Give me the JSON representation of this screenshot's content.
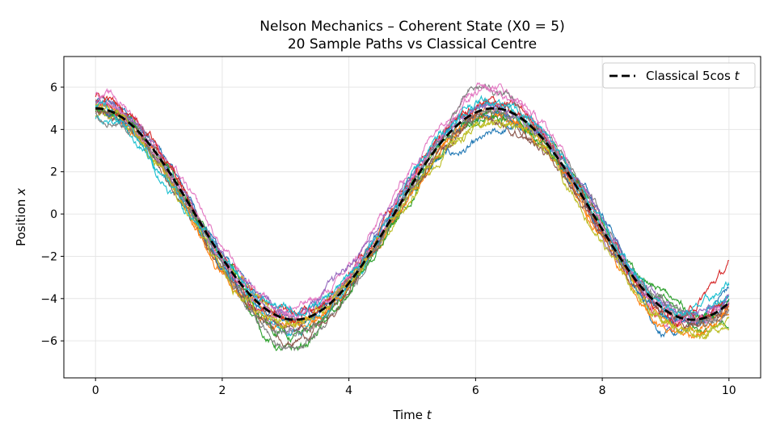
{
  "chart_data": {
    "type": "line",
    "title": "Nelson Mechanics – Coherent State (X0 = 5)",
    "subtitle": "20 Sample Paths vs Classical Centre",
    "xlabel": "Time t",
    "ylabel": "Position x",
    "xlim": [
      -0.5,
      10.5
    ],
    "ylim": [
      -7.75,
      7.45
    ],
    "xticks": [
      0,
      2,
      4,
      6,
      8,
      10
    ],
    "xtick_labels": [
      "0",
      "2",
      "4",
      "6",
      "8",
      "10"
    ],
    "yticks": [
      -6,
      -4,
      -2,
      0,
      2,
      4,
      6
    ],
    "ytick_labels": [
      "−6",
      "−4",
      "−2",
      "0",
      "2",
      "4",
      "6"
    ],
    "grid": true,
    "legend": {
      "position": "top-right",
      "entries": [
        "Classical 5cos t"
      ]
    },
    "classical": {
      "name": "Classical 5cos t",
      "formula": "5cos(t)",
      "color": "#000000",
      "style": "dashed"
    },
    "x": [
      0,
      1,
      2,
      3,
      4,
      5,
      6,
      7,
      8,
      9,
      10
    ],
    "series": [
      {
        "color": "#1f77b4",
        "values": [
          5.3,
          3.0,
          -1.8,
          -4.8,
          -3.0,
          1.3,
          3.2,
          3.5,
          0.2,
          -5.6,
          -3.5
        ]
      },
      {
        "color": "#ff7f0e",
        "values": [
          4.9,
          2.4,
          -2.6,
          -5.3,
          -3.3,
          1.6,
          4.6,
          3.6,
          -1.1,
          -4.9,
          -4.6
        ]
      },
      {
        "color": "#2ca02c",
        "values": [
          5.1,
          2.7,
          -2.2,
          -6.5,
          -3.6,
          0.8,
          4.2,
          3.9,
          -0.6,
          -4.2,
          -5.2
        ]
      },
      {
        "color": "#d62728",
        "values": [
          5.5,
          2.9,
          -1.9,
          -4.6,
          -3.1,
          1.8,
          5.0,
          4.1,
          -0.4,
          -4.8,
          -2.5
        ]
      },
      {
        "color": "#9467bd",
        "values": [
          5.0,
          2.6,
          -2.3,
          -5.2,
          -2.8,
          1.7,
          4.9,
          3.7,
          -1.0,
          -4.4,
          -3.9
        ]
      },
      {
        "color": "#8c564b",
        "values": [
          4.8,
          2.5,
          -2.6,
          -5.9,
          -3.5,
          1.2,
          4.5,
          3.3,
          -0.9,
          -4.7,
          -4.3
        ]
      },
      {
        "color": "#e377c2",
        "values": [
          5.7,
          3.2,
          -1.6,
          -4.3,
          -2.6,
          2.3,
          6.1,
          4.4,
          -0.2,
          -5.0,
          -4.0
        ]
      },
      {
        "color": "#7f7f7f",
        "values": [
          5.2,
          2.8,
          -2.4,
          -6.4,
          -3.8,
          1.0,
          5.8,
          3.9,
          -0.1,
          -4.3,
          -4.5
        ]
      },
      {
        "color": "#bcbd22",
        "values": [
          4.7,
          2.3,
          -2.0,
          -4.9,
          -3.1,
          0.9,
          4.0,
          3.4,
          -0.8,
          -5.2,
          -4.9
        ]
      },
      {
        "color": "#17becf",
        "values": [
          4.6,
          1.9,
          -2.1,
          -5.6,
          -3.4,
          1.5,
          5.2,
          3.8,
          -0.7,
          -4.6,
          -3.6
        ]
      },
      {
        "color": "#1f77b4",
        "values": [
          5.0,
          2.6,
          -2.3,
          -5.1,
          -3.2,
          1.4,
          4.7,
          3.6,
          -0.9,
          -4.9,
          -4.1
        ]
      },
      {
        "color": "#ff7f0e",
        "values": [
          5.1,
          2.5,
          -2.7,
          -4.9,
          -3.4,
          1.1,
          4.4,
          3.5,
          -1.2,
          -5.3,
          -4.7
        ]
      },
      {
        "color": "#2ca02c",
        "values": [
          4.9,
          2.8,
          -2.0,
          -5.7,
          -3.7,
          1.3,
          4.5,
          3.4,
          -0.5,
          -3.9,
          -4.4
        ]
      },
      {
        "color": "#d62728",
        "values": [
          5.4,
          3.0,
          -2.1,
          -5.0,
          -2.9,
          1.6,
          5.1,
          4.0,
          -0.6,
          -4.8,
          -4.2
        ]
      },
      {
        "color": "#9467bd",
        "values": [
          5.2,
          2.9,
          -1.9,
          -4.4,
          -2.5,
          1.9,
          4.9,
          3.9,
          -0.3,
          -4.5,
          -3.8
        ]
      },
      {
        "color": "#8c564b",
        "values": [
          5.0,
          2.4,
          -2.5,
          -5.4,
          -3.6,
          1.2,
          4.3,
          3.2,
          -1.0,
          -4.6,
          -4.3
        ]
      },
      {
        "color": "#e377c2",
        "values": [
          5.3,
          2.7,
          -2.2,
          -4.7,
          -3.0,
          1.7,
          5.5,
          4.2,
          -0.6,
          -4.7,
          -4.0
        ]
      },
      {
        "color": "#7f7f7f",
        "values": [
          4.8,
          2.6,
          -2.3,
          -5.5,
          -3.3,
          1.4,
          4.8,
          3.7,
          -0.8,
          -4.4,
          -4.6
        ]
      },
      {
        "color": "#bcbd22",
        "values": [
          5.1,
          2.2,
          -2.8,
          -5.0,
          -3.2,
          1.0,
          4.1,
          3.3,
          -1.3,
          -5.0,
          -5.0
        ]
      },
      {
        "color": "#17becf",
        "values": [
          5.0,
          2.1,
          -2.0,
          -4.5,
          -3.0,
          1.8,
          5.3,
          4.0,
          -0.5,
          -4.3,
          -3.4
        ]
      }
    ]
  }
}
